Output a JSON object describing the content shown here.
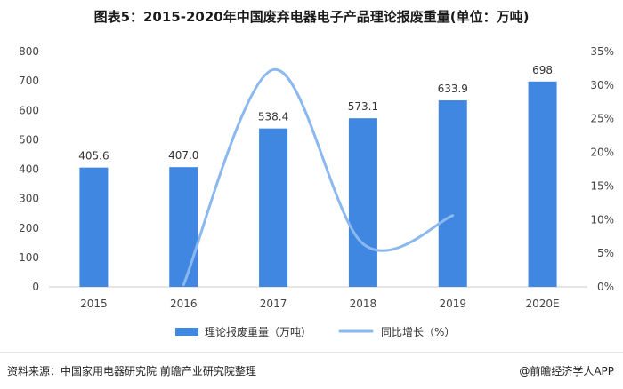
{
  "title": "图表5：2015-2020年中国废弃电器电子产品理论报废重量(单位：万吨)",
  "footer": {
    "source": "资料来源：中国家用电器研究院 前瞻产业研究院整理",
    "brand": "@前瞻经济学人APP"
  },
  "colors": {
    "bar": "#3f87e0",
    "line": "#8bb8ee",
    "grid": "#e6e6e6"
  },
  "chart_data": {
    "type": "bar",
    "categories": [
      "2015",
      "2016",
      "2017",
      "2018",
      "2019",
      "2020E"
    ],
    "series": [
      {
        "name": "理论报废重量（万吨）",
        "type": "bar",
        "values": [
          405.6,
          407.0,
          538.4,
          573.1,
          633.9,
          698
        ],
        "labels": [
          "405.6",
          "407.0",
          "538.4",
          "573.1",
          "633.9",
          "698"
        ]
      },
      {
        "name": "同比增长（%）",
        "type": "line",
        "axis": "right",
        "smooth": true,
        "values": [
          null,
          0.3,
          32.3,
          6.4,
          10.6,
          null
        ]
      }
    ],
    "y_left": {
      "min": 0,
      "max": 800,
      "ticks": [
        "0",
        "100",
        "200",
        "300",
        "400",
        "500",
        "600",
        "700",
        "800"
      ]
    },
    "y_right": {
      "min": 0,
      "max": 35,
      "ticks": [
        "0%",
        "5%",
        "10%",
        "15%",
        "20%",
        "25%",
        "30%",
        "35%"
      ]
    },
    "legend_position": "bottom",
    "grid": false
  }
}
